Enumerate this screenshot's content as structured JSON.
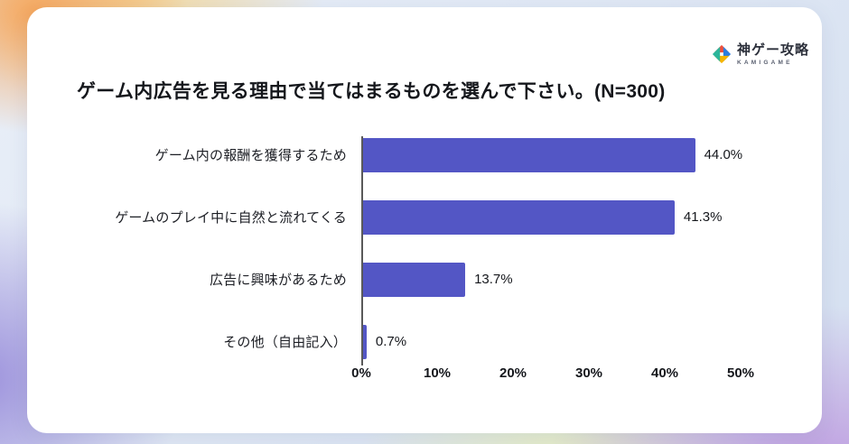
{
  "logo": {
    "name": "神ゲー攻略",
    "subtitle": "KAMIGAME"
  },
  "chart_data": {
    "type": "bar",
    "orientation": "horizontal",
    "title": "ゲーム内広告を見る理由で当てはまるものを選んで下さい。(N=300)",
    "categories": [
      "ゲーム内の報酬を獲得するため",
      "ゲームのプレイ中に自然と流れてくる",
      "広告に興味があるため",
      "その他（自由記入）"
    ],
    "values": [
      44.0,
      41.3,
      13.7,
      0.7
    ],
    "value_labels": [
      "44.0%",
      "41.3%",
      "13.7%",
      "0.7%"
    ],
    "xlabel": "",
    "ylabel": "",
    "xlim": [
      0,
      50
    ],
    "x_ticks": [
      "0%",
      "10%",
      "20%",
      "30%",
      "40%",
      "50%"
    ],
    "bar_color": "#5356c5",
    "grid": false,
    "legend": false
  }
}
